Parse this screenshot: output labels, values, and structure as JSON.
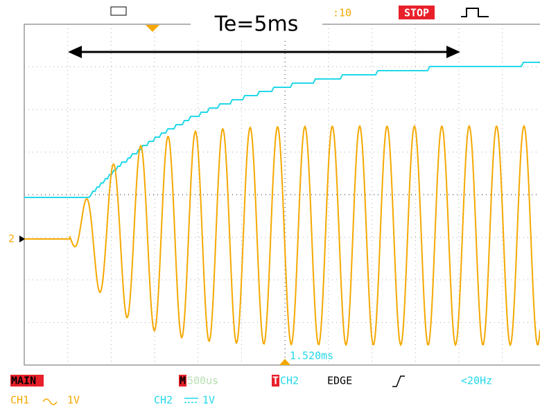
{
  "header": {
    "time_ref": ":10",
    "status": "STOP"
  },
  "annotation": {
    "label": "Te=5ms"
  },
  "cursor": {
    "time": "1.520ms"
  },
  "marker": "2",
  "footer": {
    "mode": "MAIN",
    "timebase_prefix": "M",
    "timebase": "500us",
    "trigger_prefix": "T",
    "trigger_source": "CH2",
    "trigger_type": "EDGE",
    "trigger_filter": "<20Hz",
    "ch1_label": "CH1",
    "ch1_scale": "1V",
    "ch2_label": "CH2",
    "ch2_scale": "1V"
  }
}
